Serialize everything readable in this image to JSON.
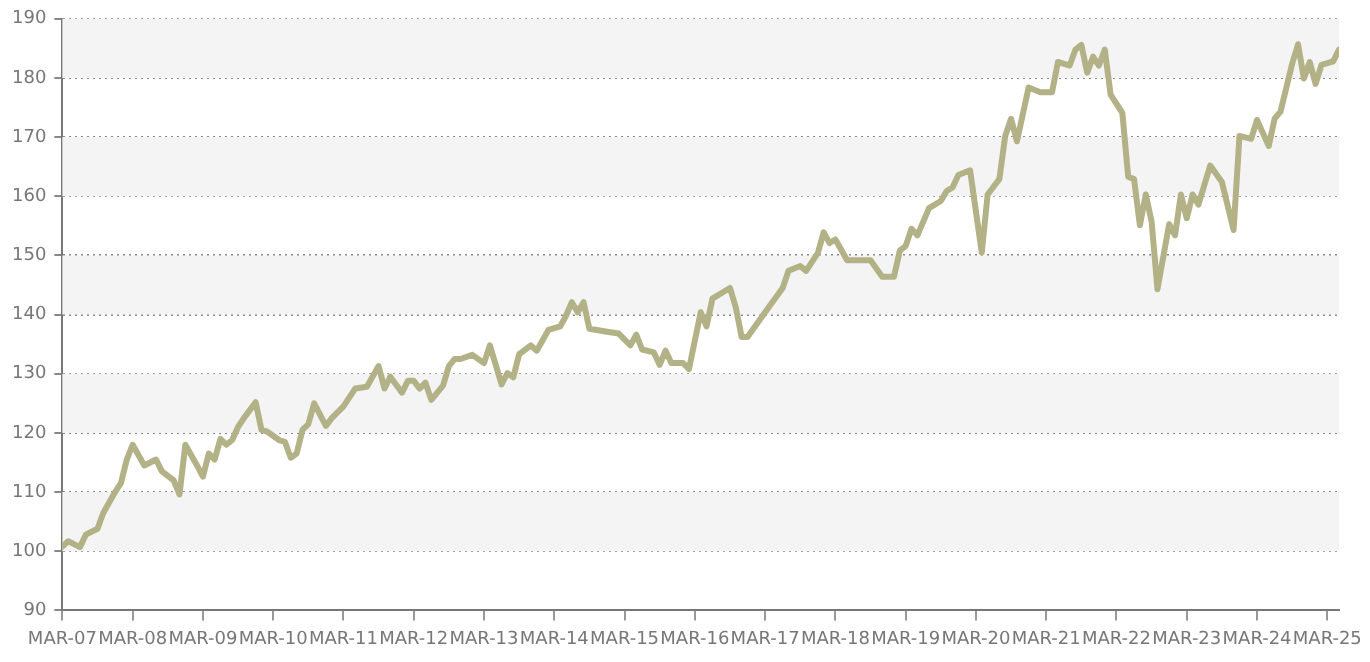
{
  "chart_data": {
    "type": "line",
    "x": [
      "2007-03",
      "2007-04",
      "2007-06",
      "2007-07",
      "2007-09",
      "2007-10",
      "2007-12",
      "2008-01",
      "2008-02",
      "2008-03",
      "2008-05",
      "2008-07",
      "2008-08",
      "2008-10",
      "2008-11",
      "2008-12",
      "2009-02",
      "2009-03",
      "2009-04",
      "2009-05",
      "2009-06",
      "2009-07",
      "2009-08",
      "2009-09",
      "2009-10",
      "2009-12",
      "2010-01",
      "2010-02",
      "2010-04",
      "2010-05",
      "2010-06",
      "2010-07",
      "2010-08",
      "2010-09",
      "2010-10",
      "2010-12",
      "2011-01",
      "2011-03",
      "2011-05",
      "2011-07",
      "2011-09",
      "2011-10",
      "2011-11",
      "2012-01",
      "2012-02",
      "2012-03",
      "2012-04",
      "2012-05",
      "2012-06",
      "2012-08",
      "2012-09",
      "2012-10",
      "2012-11",
      "2013-01",
      "2013-03",
      "2013-04",
      "2013-06",
      "2013-07",
      "2013-08",
      "2013-09",
      "2013-11",
      "2013-12",
      "2014-02",
      "2014-04",
      "2014-05",
      "2014-06",
      "2014-07",
      "2014-08",
      "2014-09",
      "2014-12",
      "2015-02",
      "2015-04",
      "2015-05",
      "2015-06",
      "2015-08",
      "2015-09",
      "2015-10",
      "2015-11",
      "2016-01",
      "2016-02",
      "2016-04",
      "2016-05",
      "2016-06",
      "2016-08",
      "2016-09",
      "2016-10",
      "2016-11",
      "2016-12",
      "2017-03",
      "2017-06",
      "2017-07",
      "2017-09",
      "2017-10",
      "2017-12",
      "2018-01",
      "2018-02",
      "2018-03",
      "2018-05",
      "2018-09",
      "2018-11",
      "2019-01",
      "2019-02",
      "2019-03",
      "2019-04",
      "2019-05",
      "2019-07",
      "2019-09",
      "2019-10",
      "2019-11",
      "2019-12",
      "2020-02",
      "2020-04",
      "2020-05",
      "2020-07",
      "2020-08",
      "2020-09",
      "2020-10",
      "2020-12",
      "2021-02",
      "2021-04",
      "2021-05",
      "2021-07",
      "2021-08",
      "2021-09",
      "2021-10",
      "2021-11",
      "2021-12",
      "2022-01",
      "2022-02",
      "2022-04",
      "2022-05",
      "2022-06",
      "2022-07",
      "2022-08",
      "2022-09",
      "2022-10",
      "2022-12",
      "2023-01",
      "2023-02",
      "2023-03",
      "2023-04",
      "2023-05",
      "2023-07",
      "2023-09",
      "2023-11",
      "2023-12",
      "2024-02",
      "2024-03",
      "2024-05",
      "2024-06",
      "2024-07",
      "2024-09",
      "2024-10",
      "2024-11",
      "2024-12",
      "2025-01",
      "2025-02",
      "2025-04",
      "2025-05"
    ],
    "series": [
      {
        "color": "#b3b287",
        "values": [
          100.8,
          101.7,
          100.7,
          102.8,
          103.8,
          106.5,
          110,
          111.5,
          115.5,
          118,
          114.5,
          115.5,
          113.5,
          112,
          109.6,
          118,
          114.5,
          112.6,
          116.5,
          115.5,
          119,
          118,
          118.8,
          121,
          122.5,
          125.2,
          120.5,
          120.2,
          118.8,
          118.5,
          115.8,
          116.5,
          120.5,
          121.5,
          125,
          121.2,
          122.5,
          124.5,
          127.5,
          127.8,
          131.3,
          127.5,
          129.5,
          126.8,
          128.8,
          128.8,
          127.5,
          128.5,
          125.6,
          128,
          131.3,
          132.5,
          132.5,
          133.2,
          131.8,
          134.8,
          128.2,
          130.1,
          129.4,
          133.3,
          134.8,
          133.9,
          137.4,
          138,
          139.8,
          142.1,
          140.4,
          142.1,
          137.6,
          137.1,
          136.8,
          134.8,
          136.6,
          134.1,
          133.6,
          131.5,
          133.9,
          131.8,
          131.8,
          130.8,
          140.4,
          138,
          142.7,
          143.9,
          144.5,
          141.2,
          136.2,
          136.2,
          140.4,
          144.5,
          147.4,
          148.2,
          147.4,
          150.4,
          153.9,
          152.1,
          152.7,
          149.2,
          149.2,
          146.4,
          146.4,
          150.8,
          151.6,
          154.5,
          153.4,
          158,
          159.2,
          160.9,
          161.5,
          163.6,
          164.4,
          150.5,
          160.3,
          162.9,
          170.2,
          173.1,
          169.3,
          178.4,
          177.6,
          177.6,
          182.7,
          182.1,
          184.8,
          185.6,
          180.9,
          183.6,
          182.1,
          184.8,
          177.2,
          174.1,
          163.3,
          162.9,
          155.1,
          160.3,
          155.7,
          144.3,
          155.3,
          153.4,
          160.3,
          156.3,
          160.3,
          158.6,
          165.2,
          162.4,
          154.3,
          170.2,
          169.7,
          172.9,
          168.5,
          173.1,
          174.3,
          182.4,
          185.7,
          179.9,
          182.7,
          179,
          182.2,
          182.8,
          184.8
        ]
      }
    ],
    "xlim": [
      "2007-03",
      "2025-05"
    ],
    "xticks": [
      {
        "value": "2007-03",
        "label": "MAR-07"
      },
      {
        "value": "2008-03",
        "label": "MAR-08"
      },
      {
        "value": "2009-03",
        "label": "MAR-09"
      },
      {
        "value": "2010-03",
        "label": "MAR-10"
      },
      {
        "value": "2011-03",
        "label": "MAR-11"
      },
      {
        "value": "2012-03",
        "label": "MAR-12"
      },
      {
        "value": "2013-03",
        "label": "MAR-13"
      },
      {
        "value": "2014-03",
        "label": "MAR-14"
      },
      {
        "value": "2015-03",
        "label": "MAR-15"
      },
      {
        "value": "2016-03",
        "label": "MAR-16"
      },
      {
        "value": "2017-03",
        "label": "MAR-17"
      },
      {
        "value": "2018-03",
        "label": "MAR-18"
      },
      {
        "value": "2019-03",
        "label": "MAR-19"
      },
      {
        "value": "2020-03",
        "label": "MAR-20"
      },
      {
        "value": "2021-03",
        "label": "MAR-21"
      },
      {
        "value": "2022-03",
        "label": "MAR-22"
      },
      {
        "value": "2023-03",
        "label": "MAR-23"
      },
      {
        "value": "2024-03",
        "label": "MAR-24"
      },
      {
        "value": "2025-03",
        "label": "MAR-25"
      }
    ],
    "ylim": [
      90,
      190
    ],
    "yticks": [
      90,
      100,
      110,
      120,
      130,
      140,
      150,
      160,
      170,
      180,
      190
    ],
    "grid": "y",
    "marker": "none",
    "line_style": "solid",
    "legend": false
  }
}
